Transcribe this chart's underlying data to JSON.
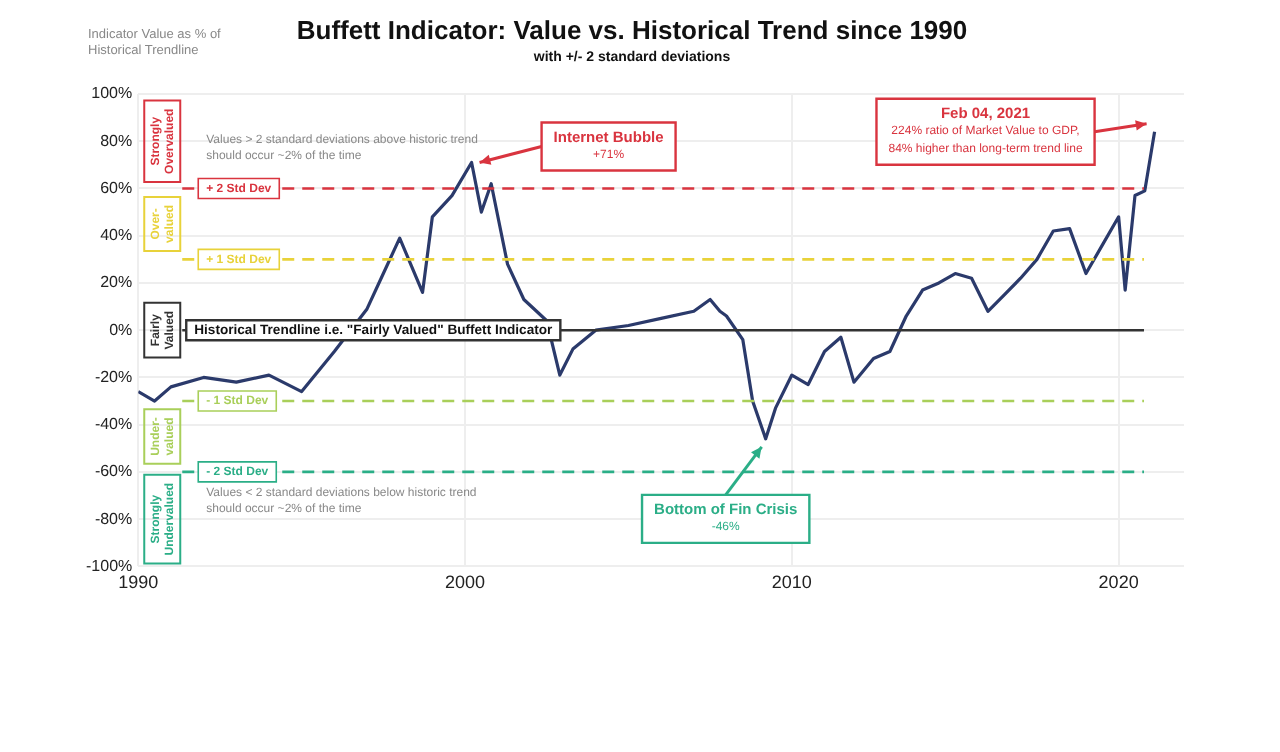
{
  "chart_data": {
    "type": "line",
    "title": "Buffett Indicator: Value vs. Historical Trend since 1990",
    "subtitle": "with +/- 2 standard deviations",
    "ylabel": "Indicator Value as % of Historical Trendline",
    "x": [
      1990,
      1990.5,
      1991,
      1992,
      1993,
      1994,
      1995,
      1996,
      1997,
      1997.5,
      1998,
      1998.7,
      1999,
      1999.6,
      2000.2,
      2000.5,
      2000.8,
      2001.3,
      2001.8,
      2002.5,
      2002.9,
      2003.3,
      2004,
      2005,
      2006,
      2007,
      2007.5,
      2007.8,
      2008,
      2008.5,
      2008.8,
      2009.2,
      2009.5,
      2010,
      2010.5,
      2011,
      2011.5,
      2011.9,
      2012.5,
      2013,
      2013.5,
      2014,
      2014.5,
      2015,
      2015.5,
      2016,
      2016.5,
      2017,
      2017.5,
      2018,
      2018.5,
      2019,
      2019.5,
      2020,
      2020.2,
      2020.5,
      2020.8,
      2021.1
    ],
    "series": [
      {
        "color": "#2b3a6b",
        "values": [
          -26,
          -30,
          -24,
          -20,
          -22,
          -19,
          -26,
          -9,
          9,
          24,
          39,
          16,
          48,
          57,
          71,
          50,
          62,
          28,
          13,
          4,
          -19,
          -8,
          0,
          2,
          5,
          8,
          13,
          8,
          6,
          -4,
          -30,
          -46,
          -33,
          -19,
          -23,
          -9,
          -3,
          -22,
          -12,
          -9,
          6,
          17,
          20,
          24,
          22,
          8,
          15,
          22,
          30,
          42,
          43,
          24,
          36,
          48,
          17,
          57,
          59,
          84
        ]
      }
    ],
    "xlim": [
      1990,
      2022
    ],
    "xticks": [
      1990,
      2000,
      2010,
      2020
    ],
    "ylim": [
      -100,
      100
    ],
    "yticks": [
      {
        "value": -100,
        "label": "-100%"
      },
      {
        "value": -80,
        "label": "-80%"
      },
      {
        "value": -60,
        "label": "-60%"
      },
      {
        "value": -40,
        "label": "-40%"
      },
      {
        "value": -20,
        "label": "-20%"
      },
      {
        "value": 0,
        "label": "0%"
      },
      {
        "value": 20,
        "label": "20%"
      },
      {
        "value": 40,
        "label": "40%"
      },
      {
        "value": 60,
        "label": "60%"
      },
      {
        "value": 80,
        "label": "80%"
      },
      {
        "value": 100,
        "label": "100%"
      }
    ],
    "ref_lines": [
      {
        "axis": "y",
        "value": 60,
        "label": "+ 2 Std Dev",
        "color": "#d9343f",
        "line_style": "dashed"
      },
      {
        "axis": "y",
        "value": 30,
        "label": "+ 1 Std Dev",
        "color": "#e8d23a",
        "line_style": "dashed"
      },
      {
        "axis": "y",
        "value": 0,
        "label": "Historical Trendline i.e. \"Fairly Valued\" Buffett Indicator",
        "color": "#333333",
        "line_style": "solid"
      },
      {
        "axis": "y",
        "value": -30,
        "label": "- 1 Std Dev",
        "color": "#a9cf5a",
        "line_style": "dashed"
      },
      {
        "axis": "y",
        "value": -60,
        "label": "- 2 Std Dev",
        "color": "#2bae87",
        "line_style": "dashed"
      }
    ],
    "annotations": [
      "Values > 2 standard deviations above historic trend should occur ~2% of the time",
      "Values < 2 standard deviations below historic trend should occur ~2% of the time",
      "Strongly Overvalued",
      "Over- valued",
      "Fairly Valued",
      "Under- valued",
      "Strongly Undervalued",
      {
        "text": "Internet Bubble\n+71%",
        "x": 2000.2,
        "y": 71
      },
      {
        "text": "Bottom of Fin Crisis\n-46%",
        "x": 2009.2,
        "y": -46
      },
      {
        "text": "Feb 04, 2021\n224% ratio of Market Value to GDP,\n84% higher than long-term trend line",
        "x": 2021.1,
        "y": 84
      }
    ],
    "grid": true,
    "legend": false,
    "marker": "none",
    "line_style": "solid"
  }
}
